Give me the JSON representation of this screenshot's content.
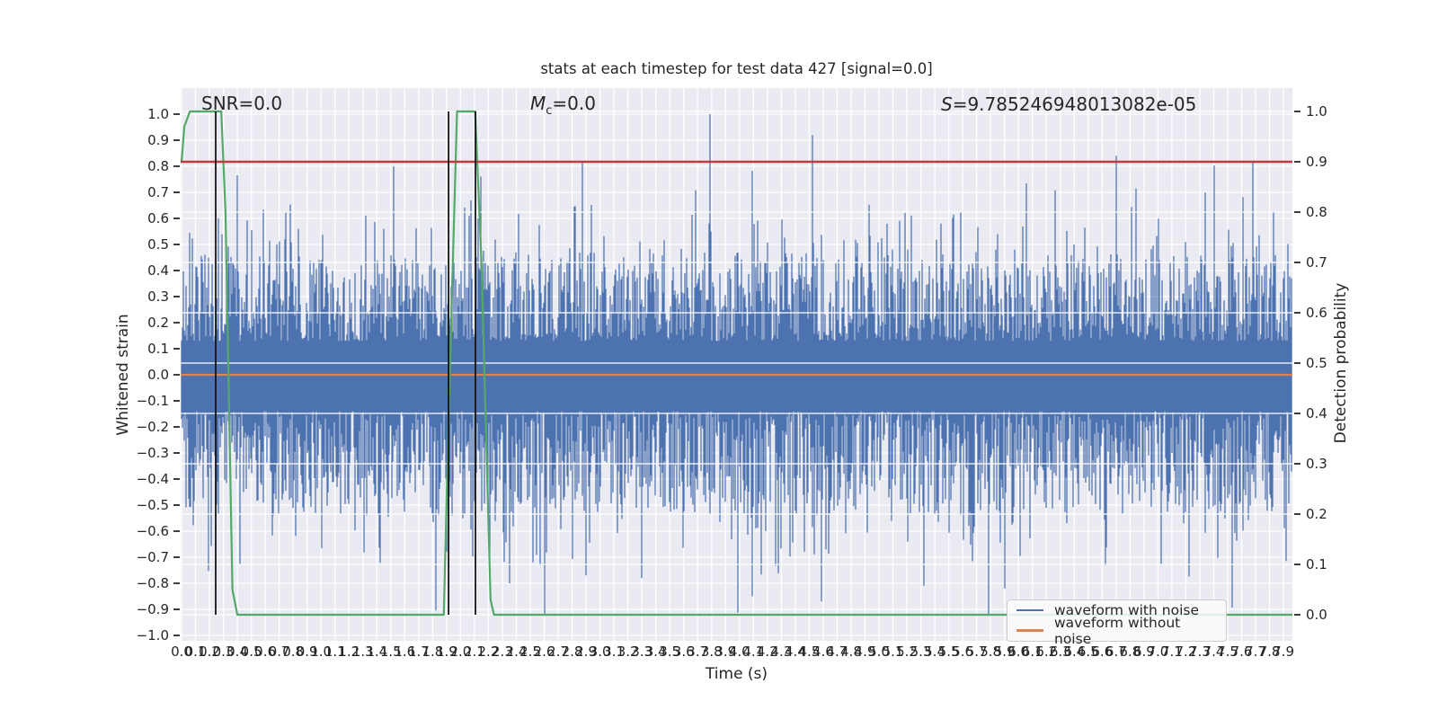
{
  "figure": {
    "title": "stats at each timestep for test data 427 [signal=0.0]",
    "annotations": {
      "snr": "SNR=0.0",
      "mc_var": "M",
      "mc_sub": "c",
      "mc_rest": "=0.0",
      "s_var": "S",
      "s_rest": "=9.785246948013082e-05"
    }
  },
  "axes": {
    "x": {
      "label": "Time (s)",
      "ticks": [
        "0.0",
        "0.1",
        "0.2",
        "0.3",
        "0.4",
        "0.5",
        "0.6",
        "0.7",
        "0.8",
        "0.9",
        "1.0",
        "1.1",
        "1.2",
        "1.3",
        "1.4",
        "1.5",
        "1.6",
        "1.7",
        "1.8",
        "1.9",
        "2.0",
        "2.1",
        "2.2",
        "2.3",
        "2.4",
        "2.5",
        "2.6",
        "2.7",
        "2.8",
        "2.9",
        "3.0",
        "3.1",
        "3.2",
        "3.3",
        "3.4",
        "3.5",
        "3.6",
        "3.7",
        "3.8",
        "3.9",
        "4.0",
        "4.1",
        "4.2",
        "4.3",
        "4.4",
        "4.5",
        "4.6",
        "4.7",
        "4.8",
        "4.9",
        "5.0",
        "5.1",
        "5.2",
        "5.3",
        "5.4",
        "5.5",
        "5.6",
        "5.7",
        "5.8",
        "5.9",
        "6.0",
        "6.1",
        "6.2",
        "6.3",
        "6.4",
        "6.5",
        "6.6",
        "6.7",
        "6.8",
        "6.9",
        "7.0",
        "7.1",
        "7.2",
        "7.3",
        "7.4",
        "7.5",
        "7.6",
        "7.7",
        "7.8",
        "7.9"
      ]
    },
    "y_left": {
      "label": "Whitened strain",
      "ticks": [
        "1.0",
        "0.9",
        "0.8",
        "0.7",
        "0.6",
        "0.5",
        "0.4",
        "0.3",
        "0.2",
        "0.1",
        "0.0",
        "−0.1",
        "−0.2",
        "−0.3",
        "−0.4",
        "−0.5",
        "−0.6",
        "−0.7",
        "−0.8",
        "−0.9",
        "−1.0"
      ]
    },
    "y_right": {
      "label": "Detection probability",
      "ticks": [
        "1.0",
        "0.9",
        "0.8",
        "0.7",
        "0.6",
        "0.5",
        "0.4",
        "0.3",
        "0.2",
        "0.1",
        "0.0"
      ]
    }
  },
  "legend": {
    "items": [
      {
        "label": "waveform with noise",
        "color": "#4C72B0"
      },
      {
        "label": "waveform without noise",
        "color": "#DD8452"
      }
    ]
  },
  "colors": {
    "plot_background": "#EAEAF2",
    "grid": "#ffffff",
    "noise_blue": "#4C72B0",
    "clean_orange": "#DD8452",
    "probability_green": "#55A868",
    "threshold_red": "#BE3C3C",
    "marker_black": "#151515",
    "text": "#262626"
  },
  "chart_data": {
    "type": "line",
    "title": "stats at each timestep for test data 427 [signal=0.0]",
    "xlabel": "Time (s)",
    "ylabel_left": "Whitened strain",
    "ylabel_right": "Detection probability",
    "x_range": [
      0,
      8.0
    ],
    "ylim_left": [
      -1.05,
      1.05
    ],
    "ylim_right": [
      0.0,
      1.0
    ],
    "grid": {
      "on": true,
      "x_step": 0.1,
      "y_left_step": 0.1,
      "y_right_step": 0.1
    },
    "legend_position": "lower right",
    "series": [
      {
        "name": "waveform with noise",
        "kind": "noise_envelope",
        "axis": "left",
        "color": "#4C72B0",
        "seed": 427,
        "core_band": [
          -0.14,
          0.14
        ],
        "typical_extent": [
          -0.55,
          0.5
        ],
        "max_extent": [
          -0.93,
          1.0
        ],
        "peaks_top": [
          [
            3.79,
            1.0
          ],
          [
            4.52,
            0.92
          ],
          [
            6.7,
            0.84
          ],
          [
            7.68,
            0.82
          ],
          [
            1.52,
            0.8
          ]
        ],
        "peaks_bottom": [
          [
            4.09,
            -0.85
          ],
          [
            4.59,
            -0.87
          ],
          [
            2.35,
            -0.8
          ],
          [
            5.9,
            -0.82
          ],
          [
            3.3,
            -0.78
          ]
        ]
      },
      {
        "name": "waveform without noise",
        "kind": "hline",
        "axis": "left",
        "color": "#DD8452",
        "y": 0.0
      },
      {
        "name": "detection probability",
        "kind": "polyline",
        "axis": "right",
        "color": "#55A868",
        "points": [
          [
            0,
            0.9
          ],
          [
            0.02,
            0.97
          ],
          [
            0.06,
            1.0
          ],
          [
            0.285,
            1.0
          ],
          [
            0.315,
            0.8
          ],
          [
            0.365,
            0.05
          ],
          [
            0.4,
            0.0
          ],
          [
            1.88,
            0.0
          ],
          [
            1.92,
            0.45
          ],
          [
            1.975,
            1.0
          ],
          [
            2.105,
            1.0
          ],
          [
            2.15,
            0.7
          ],
          [
            2.215,
            0.03
          ],
          [
            2.24,
            0.0
          ],
          [
            7.985,
            0.0
          ]
        ]
      },
      {
        "name": "alert threshold",
        "kind": "hline",
        "axis": "right",
        "color": "#BE3C3C",
        "y": 0.9
      },
      {
        "name": "event markers",
        "kind": "vlines",
        "axis": "right",
        "color": "#151515",
        "x": [
          0.245,
          1.914,
          2.107
        ],
        "y_span": [
          0.0,
          1.0
        ]
      }
    ]
  }
}
